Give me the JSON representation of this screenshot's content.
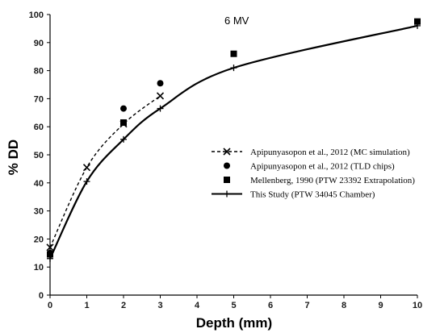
{
  "chart_data": {
    "type": "line",
    "title": "",
    "annotation": "6 MV",
    "xlabel": "Depth (mm)",
    "ylabel": "% DD",
    "xlim": [
      0,
      10
    ],
    "ylim": [
      0,
      100
    ],
    "xticks": [
      0,
      1,
      2,
      3,
      4,
      5,
      6,
      7,
      8,
      9,
      10
    ],
    "yticks": [
      0,
      10,
      20,
      30,
      40,
      50,
      60,
      70,
      80,
      90,
      100
    ],
    "grid": false,
    "legend_position": "center-right",
    "series": [
      {
        "name": "Apipunyasopon et al., 2012 (MC simulation)",
        "marker": "x",
        "line": "dashed",
        "x": [
          0,
          1,
          2,
          3
        ],
        "y": [
          17,
          45.5,
          61,
          71
        ]
      },
      {
        "name": "Apipunyasopon et al., 2012 (TLD chips)",
        "marker": "circle",
        "line": "none",
        "x": [
          0,
          2,
          3
        ],
        "y": [
          15,
          66.5,
          75.5
        ]
      },
      {
        "name": "Mellenberg, 1990 (PTW 23392 Extrapolation)",
        "marker": "square",
        "line": "none",
        "x": [
          0,
          2,
          5,
          10
        ],
        "y": [
          14.5,
          61.5,
          86,
          97.5
        ]
      },
      {
        "name": "This Study (PTW 34045 Chamber)",
        "marker": "plus",
        "line": "solid",
        "x": [
          0,
          1,
          2,
          3,
          5,
          10
        ],
        "y": [
          13,
          40.5,
          55.5,
          66.5,
          81,
          96
        ]
      }
    ]
  }
}
